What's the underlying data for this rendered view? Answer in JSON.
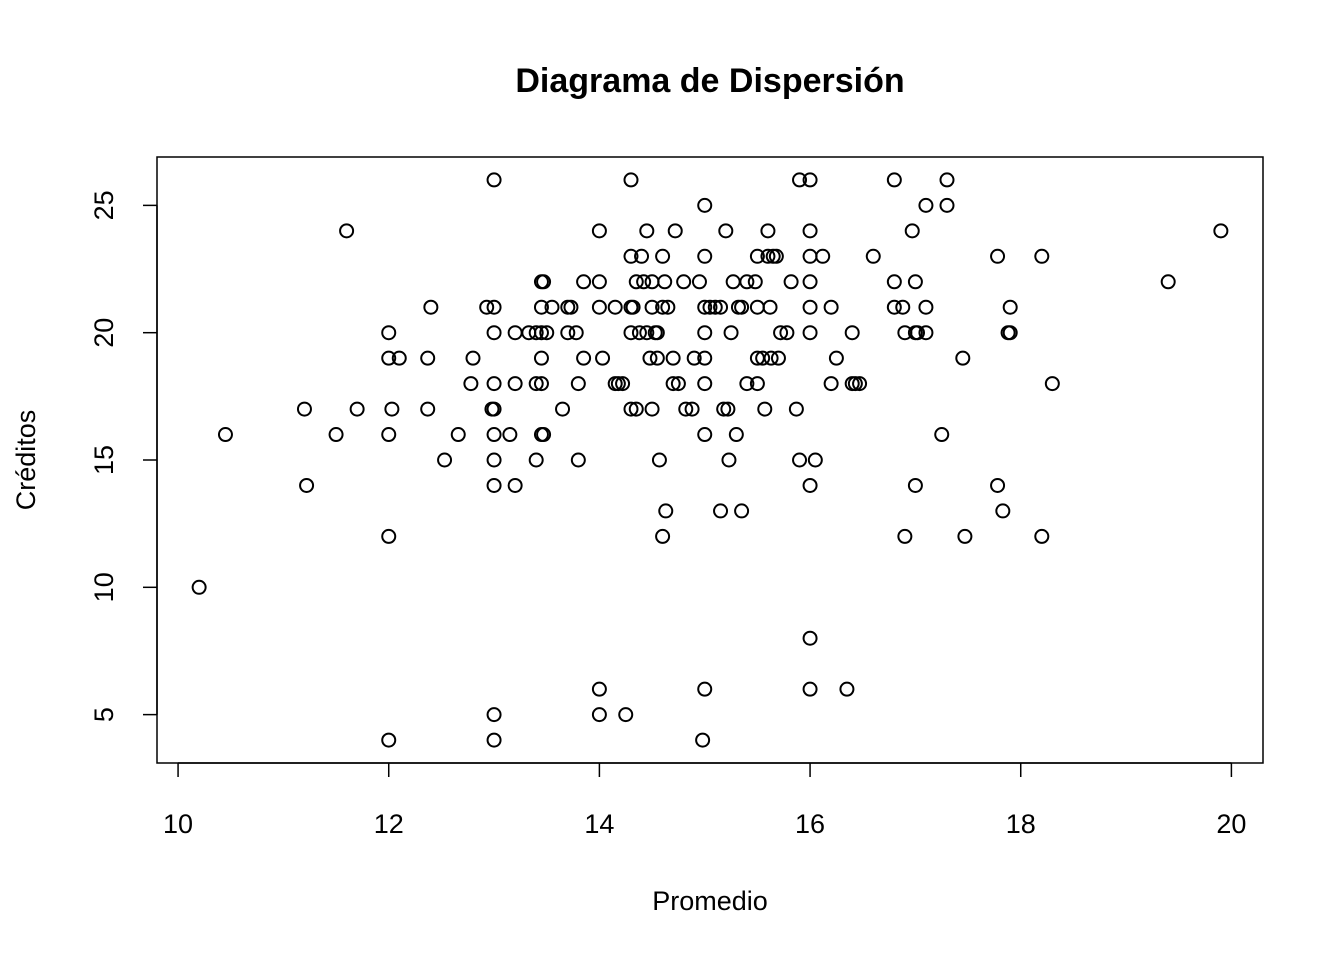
{
  "chart_data": {
    "type": "scatter",
    "title": "Diagrama de Dispersión",
    "xlabel": "Promedio",
    "ylabel": "Créditos",
    "xlim": [
      9.8,
      20.3
    ],
    "ylim": [
      3.1,
      26.9
    ],
    "xticks": [
      10,
      12,
      14,
      16,
      18,
      20
    ],
    "yticks": [
      5,
      10,
      15,
      20,
      25
    ],
    "grid": false,
    "legend": "none",
    "points": [
      [
        10.2,
        10
      ],
      [
        10.45,
        16
      ],
      [
        11.2,
        17
      ],
      [
        11.22,
        14
      ],
      [
        11.5,
        16
      ],
      [
        11.6,
        24
      ],
      [
        11.7,
        17
      ],
      [
        12.0,
        20
      ],
      [
        12.0,
        19
      ],
      [
        12.0,
        16
      ],
      [
        12.0,
        12
      ],
      [
        12.0,
        4
      ],
      [
        12.03,
        17
      ],
      [
        12.1,
        19
      ],
      [
        12.37,
        17
      ],
      [
        12.37,
        19
      ],
      [
        12.4,
        21
      ],
      [
        12.53,
        15
      ],
      [
        12.66,
        16
      ],
      [
        12.78,
        18
      ],
      [
        12.8,
        19
      ],
      [
        12.93,
        21
      ],
      [
        13.0,
        26
      ],
      [
        13.0,
        21
      ],
      [
        13.0,
        20
      ],
      [
        13.0,
        18
      ],
      [
        13.0,
        17
      ],
      [
        12.98,
        17
      ],
      [
        13.0,
        16
      ],
      [
        13.0,
        15
      ],
      [
        13.0,
        14
      ],
      [
        13.0,
        5
      ],
      [
        13.0,
        4
      ],
      [
        13.15,
        16
      ],
      [
        13.2,
        20
      ],
      [
        13.2,
        18
      ],
      [
        13.2,
        14
      ],
      [
        13.33,
        20
      ],
      [
        13.4,
        20
      ],
      [
        13.4,
        18
      ],
      [
        13.4,
        15
      ],
      [
        13.45,
        22
      ],
      [
        13.47,
        22
      ],
      [
        13.45,
        21
      ],
      [
        13.45,
        20
      ],
      [
        13.45,
        19
      ],
      [
        13.45,
        18
      ],
      [
        13.45,
        16
      ],
      [
        13.47,
        16
      ],
      [
        13.5,
        20
      ],
      [
        13.55,
        21
      ],
      [
        13.65,
        17
      ],
      [
        13.7,
        21
      ],
      [
        13.73,
        21
      ],
      [
        13.7,
        20
      ],
      [
        13.78,
        20
      ],
      [
        13.8,
        18
      ],
      [
        13.8,
        15
      ],
      [
        13.85,
        22
      ],
      [
        13.85,
        19
      ],
      [
        14.0,
        24
      ],
      [
        14.0,
        22
      ],
      [
        14.0,
        21
      ],
      [
        14.03,
        19
      ],
      [
        14.0,
        6
      ],
      [
        14.0,
        5
      ],
      [
        14.15,
        21
      ],
      [
        14.15,
        18
      ],
      [
        14.18,
        18
      ],
      [
        14.22,
        18
      ],
      [
        14.25,
        5
      ],
      [
        14.3,
        26
      ],
      [
        14.3,
        23
      ],
      [
        14.3,
        21
      ],
      [
        14.32,
        21
      ],
      [
        14.3,
        20
      ],
      [
        14.3,
        17
      ],
      [
        14.35,
        22
      ],
      [
        14.35,
        17
      ],
      [
        14.38,
        20
      ],
      [
        14.4,
        23
      ],
      [
        14.42,
        22
      ],
      [
        14.45,
        24
      ],
      [
        14.45,
        20
      ],
      [
        14.48,
        19
      ],
      [
        14.5,
        22
      ],
      [
        14.5,
        21
      ],
      [
        14.5,
        17
      ],
      [
        14.53,
        20
      ],
      [
        14.55,
        19
      ],
      [
        14.55,
        20
      ],
      [
        14.57,
        15
      ],
      [
        14.6,
        21
      ],
      [
        14.6,
        23
      ],
      [
        14.62,
        22
      ],
      [
        14.6,
        12
      ],
      [
        14.63,
        13
      ],
      [
        14.65,
        21
      ],
      [
        14.7,
        19
      ],
      [
        14.7,
        18
      ],
      [
        14.72,
        24
      ],
      [
        14.75,
        18
      ],
      [
        14.8,
        22
      ],
      [
        14.82,
        17
      ],
      [
        14.88,
        17
      ],
      [
        14.9,
        19
      ],
      [
        14.95,
        22
      ],
      [
        15.0,
        25
      ],
      [
        15.0,
        23
      ],
      [
        15.0,
        21
      ],
      [
        15.0,
        20
      ],
      [
        15.0,
        19
      ],
      [
        15.0,
        18
      ],
      [
        15.0,
        16
      ],
      [
        15.0,
        6
      ],
      [
        14.98,
        4
      ],
      [
        15.05,
        21
      ],
      [
        15.1,
        21
      ],
      [
        15.15,
        21
      ],
      [
        15.15,
        13
      ],
      [
        15.18,
        17
      ],
      [
        15.2,
        24
      ],
      [
        15.22,
        17
      ],
      [
        15.23,
        15
      ],
      [
        15.25,
        20
      ],
      [
        15.27,
        22
      ],
      [
        15.3,
        16
      ],
      [
        15.32,
        21
      ],
      [
        15.35,
        21
      ],
      [
        15.35,
        13
      ],
      [
        15.4,
        18
      ],
      [
        15.4,
        22
      ],
      [
        15.48,
        22
      ],
      [
        15.5,
        23
      ],
      [
        15.5,
        21
      ],
      [
        15.5,
        19
      ],
      [
        15.5,
        18
      ],
      [
        15.55,
        19
      ],
      [
        15.57,
        17
      ],
      [
        15.6,
        24
      ],
      [
        15.6,
        23
      ],
      [
        15.62,
        21
      ],
      [
        15.63,
        19
      ],
      [
        15.65,
        23
      ],
      [
        15.68,
        23
      ],
      [
        15.7,
        19
      ],
      [
        15.72,
        20
      ],
      [
        15.78,
        20
      ],
      [
        15.82,
        22
      ],
      [
        15.87,
        17
      ],
      [
        15.9,
        26
      ],
      [
        15.9,
        15
      ],
      [
        16.0,
        26
      ],
      [
        16.0,
        24
      ],
      [
        16.0,
        23
      ],
      [
        16.0,
        22
      ],
      [
        16.0,
        21
      ],
      [
        16.0,
        20
      ],
      [
        16.0,
        14
      ],
      [
        16.0,
        8
      ],
      [
        16.0,
        6
      ],
      [
        16.05,
        15
      ],
      [
        16.12,
        23
      ],
      [
        16.2,
        21
      ],
      [
        16.2,
        18
      ],
      [
        16.25,
        19
      ],
      [
        16.35,
        6
      ],
      [
        16.4,
        20
      ],
      [
        16.4,
        18
      ],
      [
        16.43,
        18
      ],
      [
        16.47,
        18
      ],
      [
        16.6,
        23
      ],
      [
        16.8,
        26
      ],
      [
        16.8,
        22
      ],
      [
        16.8,
        21
      ],
      [
        16.88,
        21
      ],
      [
        16.9,
        20
      ],
      [
        16.9,
        12
      ],
      [
        16.97,
        24
      ],
      [
        17.0,
        20
      ],
      [
        17.02,
        20
      ],
      [
        17.0,
        22
      ],
      [
        17.0,
        14
      ],
      [
        17.1,
        25
      ],
      [
        17.1,
        21
      ],
      [
        17.1,
        20
      ],
      [
        17.25,
        16
      ],
      [
        17.3,
        26
      ],
      [
        17.3,
        25
      ],
      [
        17.45,
        19
      ],
      [
        17.47,
        12
      ],
      [
        17.78,
        23
      ],
      [
        17.78,
        14
      ],
      [
        17.83,
        13
      ],
      [
        17.9,
        21
      ],
      [
        17.88,
        20
      ],
      [
        17.9,
        20
      ],
      [
        18.2,
        23
      ],
      [
        18.2,
        12
      ],
      [
        18.3,
        18
      ],
      [
        19.4,
        22
      ],
      [
        19.9,
        24
      ]
    ]
  }
}
